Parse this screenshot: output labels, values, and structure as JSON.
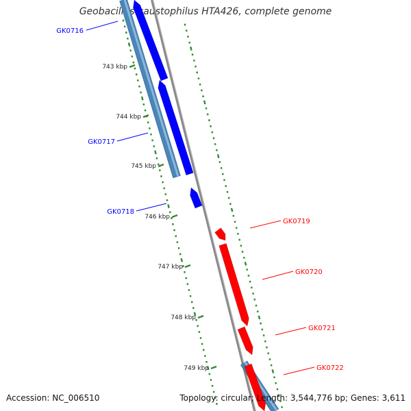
{
  "title": "Geobacillus kaustophilus HTA426, complete genome",
  "accession_label": "Accession: NC_006510",
  "summary_label": "Topology: circular; Length: 3,544,776 bp; Genes: 3,611",
  "colors": {
    "forward_strand": "#0000ff",
    "reverse_strand": "#ff0000",
    "cds_forward": "#4a86b8",
    "cds_reverse": "#4a86b8",
    "backbone": "#8a8a8a",
    "gc_dots": "#2f8b2f",
    "tick": "#2f8b2f"
  },
  "ticks": [
    {
      "label": "743 kbp",
      "kbp": 743
    },
    {
      "label": "744 kbp",
      "kbp": 744
    },
    {
      "label": "745 kbp",
      "kbp": 745
    },
    {
      "label": "746 kbp",
      "kbp": 746
    },
    {
      "label": "747 kbp",
      "kbp": 747
    },
    {
      "label": "748 kbp",
      "kbp": 748
    },
    {
      "label": "749 kbp",
      "kbp": 749
    }
  ],
  "genes": [
    {
      "name": "GK0716",
      "strand": "+",
      "color": "#0000ff"
    },
    {
      "name": "GK0717",
      "strand": "+",
      "color": "#0000ff"
    },
    {
      "name": "GK0718",
      "strand": "+",
      "color": "#0000ff"
    },
    {
      "name": "GK0719",
      "strand": "-",
      "color": "#ff0000"
    },
    {
      "name": "GK0720",
      "strand": "-",
      "color": "#ff0000"
    },
    {
      "name": "GK0721",
      "strand": "-",
      "color": "#ff0000"
    },
    {
      "name": "GK0722",
      "strand": "-",
      "color": "#ff0000"
    }
  ]
}
